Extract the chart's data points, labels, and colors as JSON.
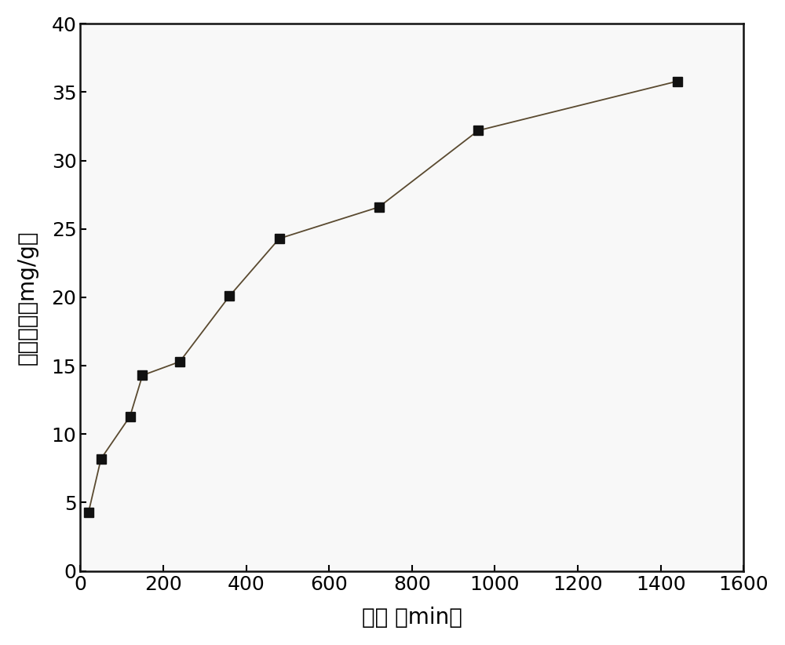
{
  "x": [
    20,
    50,
    120,
    150,
    240,
    360,
    480,
    720,
    960,
    1440
  ],
  "y": [
    4.3,
    8.2,
    11.3,
    14.3,
    15.3,
    20.1,
    24.3,
    26.6,
    32.2,
    35.8
  ],
  "xlabel": "时间 （min）",
  "ylabel": "吸附容量（mg/g）",
  "xlim": [
    0,
    1600
  ],
  "ylim": [
    0,
    40
  ],
  "xticks": [
    0,
    200,
    400,
    600,
    800,
    1000,
    1200,
    1400,
    1600
  ],
  "yticks": [
    0,
    5,
    10,
    15,
    20,
    25,
    30,
    35,
    40
  ],
  "line_color": "#5a4a30",
  "marker_color": "#111111",
  "marker": "s",
  "marker_size": 9,
  "line_width": 1.3,
  "background_color": "#ffffff",
  "plot_bg_color": "#f8f8f8"
}
